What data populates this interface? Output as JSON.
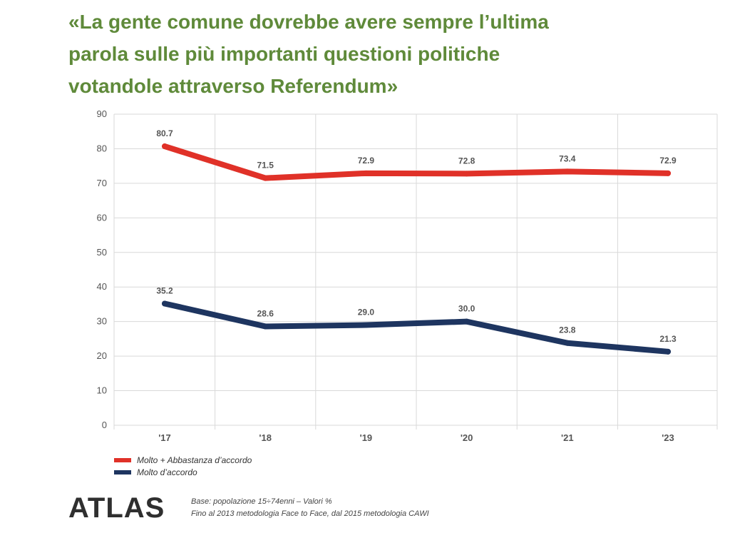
{
  "title": {
    "line1": "«La gente comune dovrebbe avere sempre l’ultima",
    "line2": "parola sulle più importanti questioni politiche",
    "line3": "votandole attraverso Referendum»"
  },
  "colors": {
    "title": "#5f8a3a",
    "series_red": "#e03128",
    "series_navy": "#1e3560",
    "grid": "#d9d9d9",
    "axis_text": "#555555"
  },
  "chart_data": {
    "type": "line",
    "x": [
      "'17",
      "'18",
      "'19",
      "'20",
      "'21",
      "'23"
    ],
    "ylim": [
      0,
      90
    ],
    "yticks": [
      0,
      10,
      20,
      30,
      40,
      50,
      60,
      70,
      80,
      90
    ],
    "grid": true,
    "legend_position": "bottom-left",
    "series": [
      {
        "name": "Molto + Abbastanza  d’accordo",
        "color": "#e03128",
        "values": [
          80.7,
          71.5,
          72.9,
          72.8,
          73.4,
          72.9
        ],
        "labels": [
          "80.7",
          "71.5",
          "72.9",
          "72.8",
          "73.4",
          "72.9"
        ]
      },
      {
        "name": "Molto d’accordo",
        "color": "#1e3560",
        "values": [
          35.2,
          28.6,
          29.0,
          30.0,
          23.8,
          21.3
        ],
        "labels": [
          "35.2",
          "28.6",
          "29.0",
          "30.0",
          "23.8",
          "21.3"
        ]
      }
    ]
  },
  "logo": {
    "text": "ATLAS"
  },
  "footnote": {
    "line1": "Base: popolazione 15÷74enni – Valori %",
    "line2": "Fino al 2013 metodologia Face to Face, dal 2015 metodologia CAWI"
  }
}
